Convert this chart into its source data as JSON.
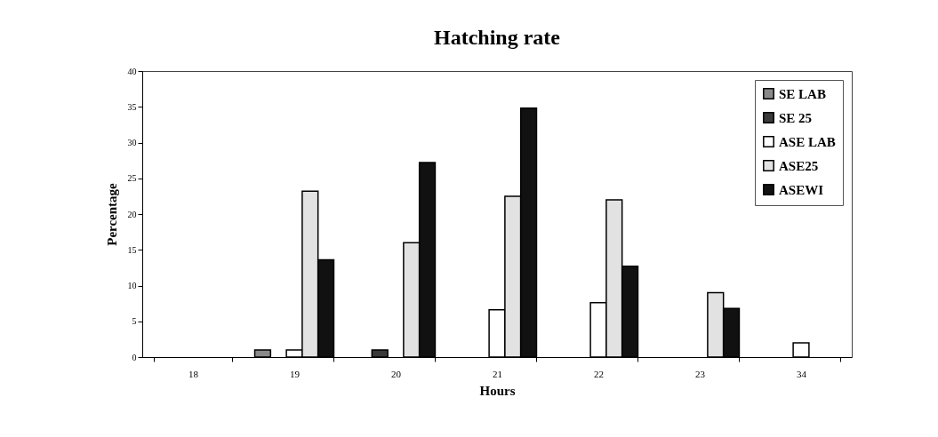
{
  "chart_data": {
    "type": "bar",
    "title": "Hatching rate",
    "xlabel": "Hours",
    "ylabel": "Percentage",
    "categories": [
      "18",
      "19",
      "20",
      "21",
      "22",
      "23",
      "34"
    ],
    "series": [
      {
        "name": "SE LAB",
        "color": "#8a8a8a",
        "values": [
          0,
          1,
          0,
          0,
          0,
          0,
          0
        ]
      },
      {
        "name": "SE 25",
        "color": "#3a3a3a",
        "values": [
          0,
          0,
          1,
          0,
          0,
          0,
          0
        ]
      },
      {
        "name": "ASE LAB",
        "color": "#ffffff",
        "values": [
          0,
          1,
          0,
          6.6,
          7.6,
          0,
          2
        ]
      },
      {
        "name": "ASE25",
        "color": "#e2e2e2",
        "values": [
          0,
          23.2,
          16,
          22.5,
          22,
          9,
          0
        ]
      },
      {
        "name": "ASEWI",
        "color": "#111111",
        "values": [
          0,
          13.6,
          27.2,
          34.8,
          12.7,
          6.8,
          0
        ]
      }
    ],
    "ylim": [
      0,
      40
    ],
    "yticks": [
      0,
      5,
      10,
      15,
      20,
      25,
      30,
      35,
      40
    ],
    "grid": false,
    "legend": "top right"
  }
}
